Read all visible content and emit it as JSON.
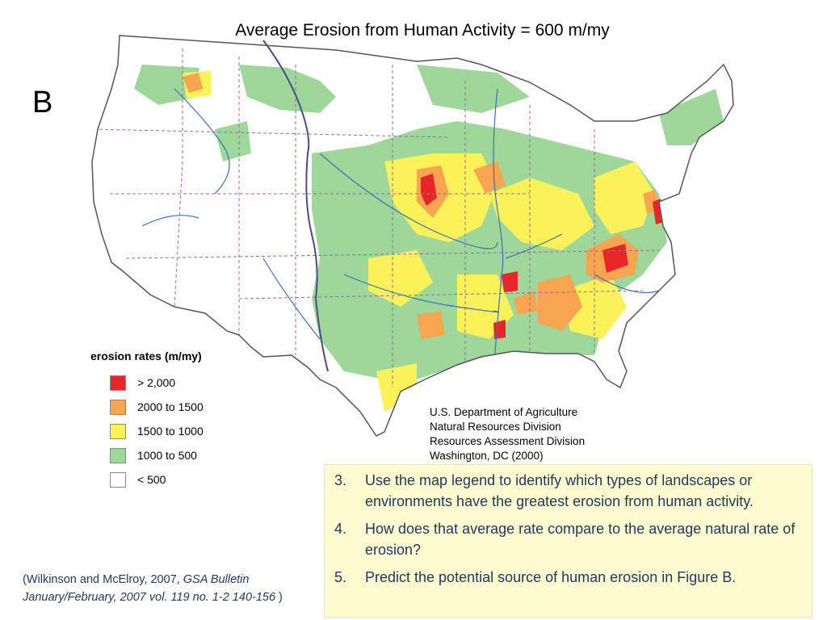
{
  "title": "Average Erosion from Human Activity = 600 m/my",
  "panel_letter": "B",
  "legend": {
    "title": "erosion rates (m/my)",
    "items": [
      {
        "label": "> 2,000",
        "color": "#e8262a"
      },
      {
        "label": "2000 to 1500",
        "color": "#f7a54f"
      },
      {
        "label": "1500 to 1000",
        "color": "#fbf25a"
      },
      {
        "label": "1000 to 500",
        "color": "#9dd89a"
      },
      {
        "label": "< 500",
        "color": "#ffffff"
      }
    ]
  },
  "source": {
    "line1": "U.S. Department of Agriculture",
    "line2": "Natural Resources Division",
    "line3": "Resources Assessment Division",
    "line4": "Washington, DC  (2000)"
  },
  "citation": {
    "prefix": "(Wilkinson and McElroy, 2007, ",
    "journal": "GSA Bulletin",
    "details": "January/February, 2007 vol. 119 no. 1-2 140-156",
    "suffix": " )"
  },
  "questions": [
    {
      "num": "3.",
      "text": "Use the map legend to identify which types of landscapes or environments have the greatest erosion from human activity."
    },
    {
      "num": "4.",
      "text": "How does that average rate compare to the average natural rate of erosion?"
    },
    {
      "num": "5.",
      "text": "Predict the potential source of human erosion in Figure B."
    }
  ],
  "map": {
    "colors": {
      "outline": "#555555",
      "boundary": "#9b6b9b",
      "river": "#3f6fb5",
      "continental_divide": "#4a4a8a",
      "low": "#9dd89a",
      "medium": "#fbf25a",
      "high": "#f7a54f",
      "very_high": "#e8262a"
    }
  }
}
